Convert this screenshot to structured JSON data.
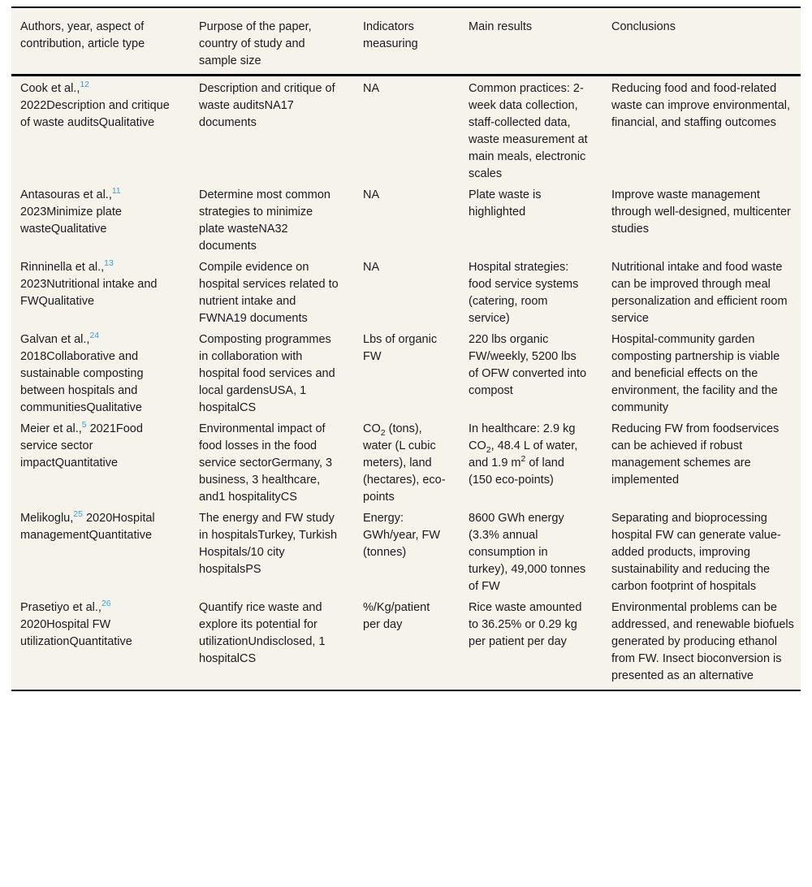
{
  "colors": {
    "table_background": "#f6f3eb",
    "reference_link": "#38a0d8",
    "text": "#1b1b1b",
    "rule": "#000000"
  },
  "table": {
    "columns": [
      "Authors, year, aspect of contribution, article type",
      "Purpose of the paper, country of study and sample size",
      "Indicators measuring",
      "Main results",
      "Conclusions"
    ],
    "rows": [
      {
        "authors": [
          {
            "t": "Cook et al.,"
          },
          {
            "ref": "12"
          },
          {
            "t": " 2022Description and critique of waste auditsQualitative"
          }
        ],
        "purpose": "Description and critique of waste auditsNA17 documents",
        "indicators": "NA",
        "results": "Common practices: 2-week data collection, staff-collected data, waste measurement at main meals, electronic scales",
        "conclusions": "Reducing food and food-related waste can improve environmental, financial, and staffing outcomes"
      },
      {
        "authors": [
          {
            "t": "Antasouras et al.,"
          },
          {
            "ref": "11"
          },
          {
            "t": " 2023Minimize plate wasteQualitative"
          }
        ],
        "purpose": "Determine most common strategies to minimize plate wasteNA32 documents",
        "indicators": "NA",
        "results": "Plate waste is highlighted",
        "conclusions": "Improve waste management through well-designed, multicenter studies"
      },
      {
        "authors": [
          {
            "t": "Rinninella et al.,"
          },
          {
            "ref": "13"
          },
          {
            "t": " 2023Nutritional intake and FWQualitative"
          }
        ],
        "purpose": "Compile evidence on hospital services related to nutrient intake and FWNA19 documents",
        "indicators": "NA",
        "results": "Hospital strategies: food service systems (catering, room service)",
        "conclusions": "Nutritional intake and food waste can be improved through meal personalization and efficient room service"
      },
      {
        "authors": [
          {
            "t": "Galvan et al.,"
          },
          {
            "ref": "24"
          },
          {
            "t": " 2018Collaborative and sustainable composting between hospitals and communitiesQualitative"
          }
        ],
        "purpose": "Composting programmes in collaboration with hospital food services and local gardensUSA, 1 hospitalCS",
        "indicators": "Lbs of organic FW",
        "results": "220 lbs organic FW/weekly, 5200 lbs of OFW converted into compost",
        "conclusions": "Hospital-community garden composting partnership is viable and beneficial effects on the environment, the facility and the community"
      },
      {
        "authors": [
          {
            "t": "Meier et al.,"
          },
          {
            "ref": "5"
          },
          {
            "t": " 2021Food service sector impactQuantitative"
          }
        ],
        "purpose": "Environmental impact of food losses in the food service sectorGermany, 3 business, 3 healthcare, and1 hospitalityCS",
        "indicators": [
          {
            "t": "CO"
          },
          {
            "sub": "2"
          },
          {
            "t": " (tons), water (L cubic meters), land (hectares), eco-points"
          }
        ],
        "results": [
          {
            "t": "In healthcare: 2.9 kg CO"
          },
          {
            "sub": "2"
          },
          {
            "t": ", 48.4 L of water, and 1.9 m"
          },
          {
            "sup": "2"
          },
          {
            "t": " of land (150 eco-points)"
          }
        ],
        "conclusions": "Reducing FW from foodservices can be achieved if robust management schemes are implemented"
      },
      {
        "authors": [
          {
            "t": "Melikoglu,"
          },
          {
            "ref": "25"
          },
          {
            "t": " 2020Hospital managementQuantitative"
          }
        ],
        "purpose": "The energy and FW study in hospitalsTurkey, Turkish Hospitals/10 city hospitalsPS",
        "indicators": "Energy: GWh/year, FW (tonnes)",
        "results": "8600 GWh energy (3.3% annual consumption in turkey), 49,000 tonnes of FW",
        "conclusions": "Separating and bioprocessing hospital FW can generate value-added products, improving sustainability and reducing the carbon footprint of hospitals"
      },
      {
        "authors": [
          {
            "t": "Prasetiyo et al.,"
          },
          {
            "ref": "26"
          },
          {
            "t": " 2020Hospital FW utilizationQuantitative"
          }
        ],
        "purpose": "Quantify rice waste and explore its potential for utilizationUndisclosed, 1 hospitalCS",
        "indicators": "%/Kg/patient per day",
        "results": "Rice waste amounted to 36.25% or 0.29 kg per patient per day",
        "conclusions": "Environmental problems can be addressed, and renewable biofuels generated by producing ethanol from FW. Insect bioconversion is presented as an alternative"
      }
    ]
  }
}
